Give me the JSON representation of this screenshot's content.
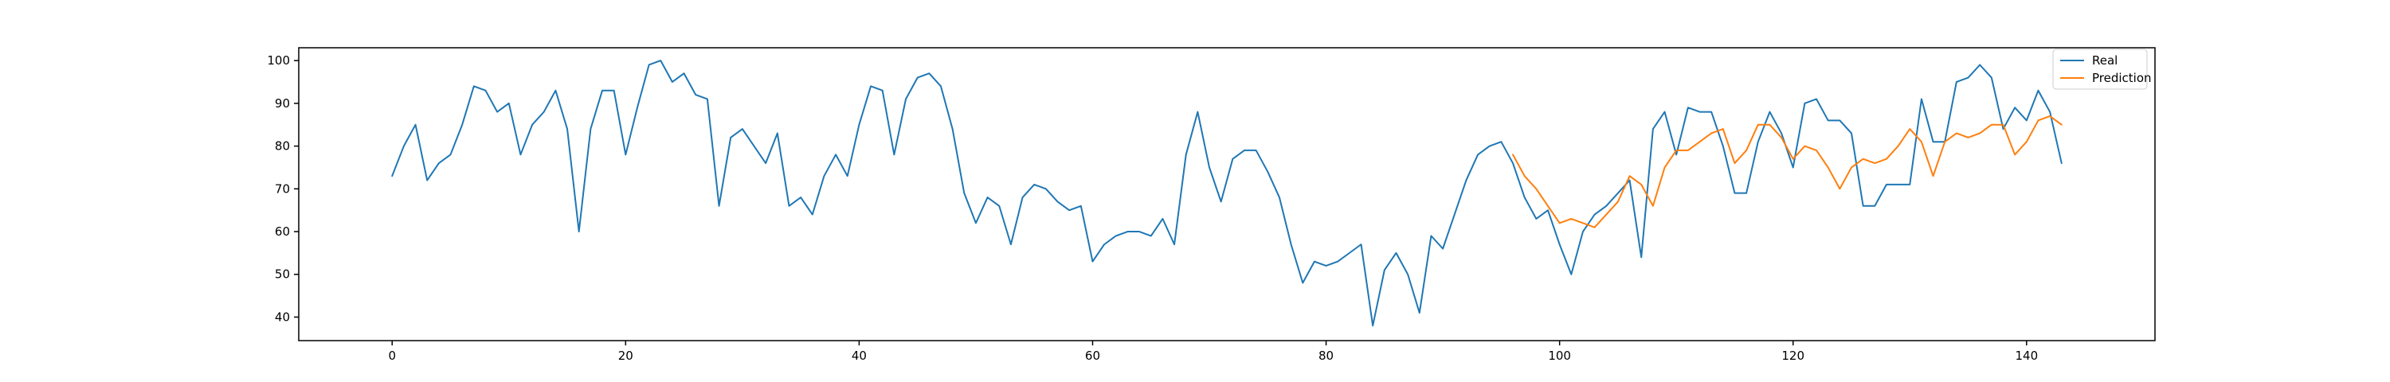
{
  "chart_data": {
    "type": "line",
    "title": "",
    "xlabel": "",
    "ylabel": "",
    "xlim": [
      -8,
      151
    ],
    "ylim": [
      34.5,
      103
    ],
    "xticks": [
      0,
      20,
      40,
      60,
      80,
      100,
      120,
      140
    ],
    "yticks": [
      40,
      50,
      60,
      70,
      80,
      90,
      100
    ],
    "grid": false,
    "legend_position": "top-right",
    "series": [
      {
        "name": "Real",
        "color": "#1f77b4",
        "x_start": 0,
        "values": [
          73,
          80,
          85,
          72,
          76,
          78,
          85,
          94,
          93,
          88,
          90,
          78,
          85,
          88,
          93,
          84,
          60,
          84,
          93,
          93,
          78,
          89,
          99,
          100,
          95,
          97,
          92,
          91,
          66,
          82,
          84,
          80,
          76,
          83,
          66,
          68,
          64,
          73,
          78,
          73,
          85,
          94,
          93,
          78,
          91,
          96,
          97,
          94,
          84,
          69,
          62,
          68,
          66,
          57,
          68,
          71,
          70,
          67,
          65,
          66,
          53,
          57,
          59,
          60,
          60,
          59,
          63,
          57,
          78,
          88,
          75,
          67,
          77,
          79,
          79,
          74,
          68,
          57,
          48,
          53,
          52,
          53,
          55,
          57,
          38,
          51,
          55,
          50,
          41,
          59,
          56,
          64,
          72,
          78,
          80,
          81,
          76,
          68,
          63,
          65,
          57,
          50,
          60,
          64,
          66,
          69,
          72,
          54,
          84,
          88,
          78,
          89,
          88,
          88,
          80,
          69,
          69,
          81,
          88,
          83,
          75,
          90,
          91,
          86,
          86,
          83,
          66,
          66,
          71,
          71,
          71,
          91,
          81,
          81,
          95,
          96,
          99,
          96,
          84,
          89,
          86,
          93,
          88,
          76
        ]
      },
      {
        "name": "Prediction",
        "color": "#ff7f0e",
        "x_start": 96,
        "values": [
          78,
          73,
          70,
          66,
          62,
          63,
          62,
          61,
          64,
          67,
          73,
          71,
          66,
          75,
          79,
          79,
          81,
          83,
          84,
          76,
          79,
          85,
          85,
          82,
          77,
          80,
          79,
          75,
          70,
          75,
          77,
          76,
          77,
          80,
          84,
          81,
          73,
          81,
          83,
          82,
          83,
          85,
          85,
          78,
          81,
          86,
          87,
          85
        ]
      }
    ]
  }
}
